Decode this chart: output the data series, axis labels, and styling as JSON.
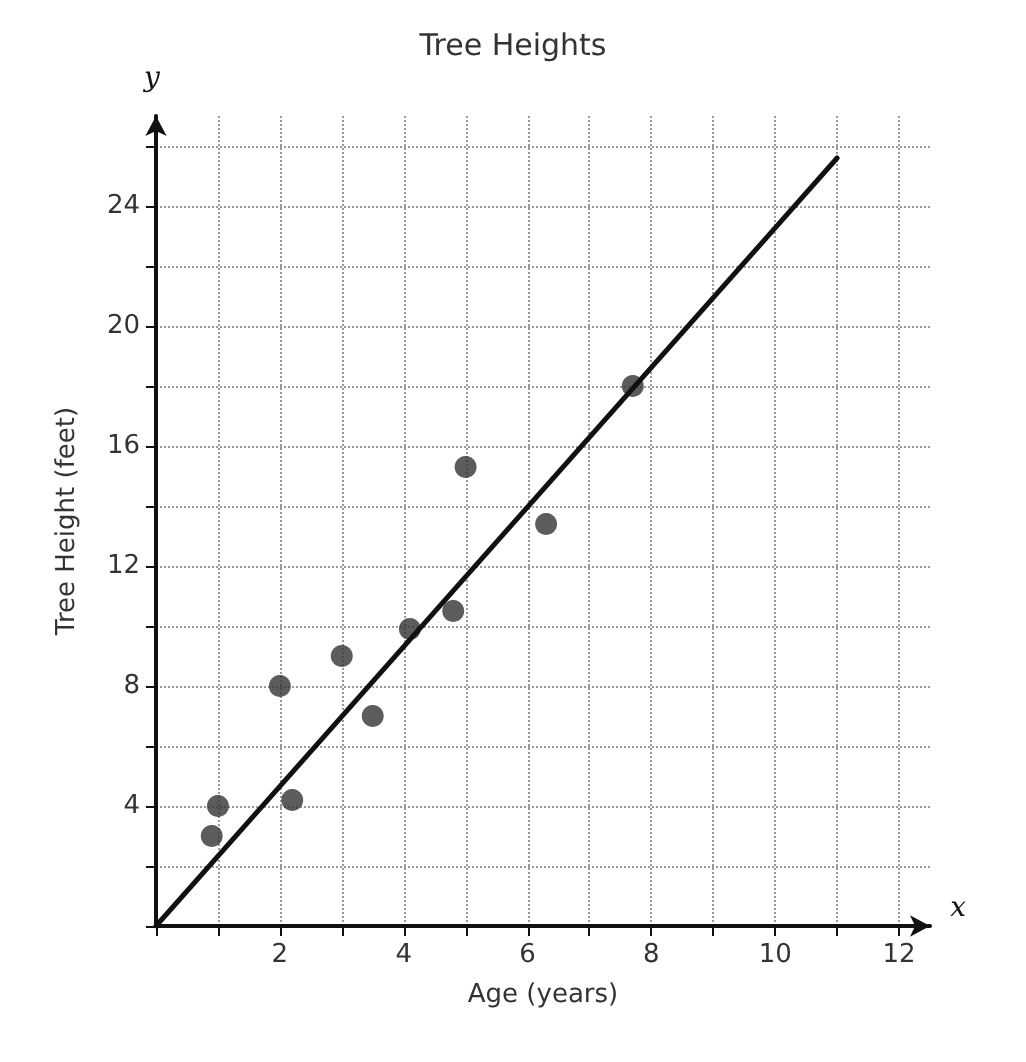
{
  "chart_data": {
    "type": "scatter",
    "title": "Tree Heights",
    "xlabel": "Age (years)",
    "ylabel": "Tree Height (feet)",
    "annotations": [
      "x",
      "y"
    ],
    "x": [
      0.9,
      1,
      2,
      2.2,
      3,
      3.5,
      4.1,
      4.8,
      5,
      6.3,
      7.7
    ],
    "series": [
      {
        "color": "#333333",
        "marker": "circle",
        "values": [
          3,
          4,
          8,
          4.2,
          9,
          7,
          9.9,
          10.5,
          15.3,
          13.4,
          18
        ]
      },
      {
        "type": "line",
        "color": "#111111",
        "x": [
          0,
          11
        ],
        "values": [
          0,
          25.6
        ]
      }
    ],
    "xlim": [
      0,
      12.5
    ],
    "ylim": [
      0,
      27
    ],
    "xticks": [
      {
        "value": 0,
        "label": null
      },
      {
        "value": 1,
        "label": null
      },
      2,
      {
        "value": 3,
        "label": null
      },
      4,
      {
        "value": 5,
        "label": null
      },
      6,
      {
        "value": 7,
        "label": null
      },
      8,
      {
        "value": 9,
        "label": null
      },
      10,
      {
        "value": 11,
        "label": null
      },
      12
    ],
    "yticks": [
      {
        "value": 0,
        "label": null
      },
      {
        "value": 2,
        "label": null
      },
      4,
      {
        "value": 6,
        "label": null
      },
      8,
      {
        "value": 10,
        "label": null
      },
      12,
      {
        "value": 14,
        "label": null
      },
      16,
      {
        "value": 18,
        "label": null
      },
      20,
      {
        "value": 22,
        "label": null
      },
      24,
      {
        "value": 26,
        "label": null
      }
    ],
    "grid": true,
    "line_style": "solid"
  }
}
